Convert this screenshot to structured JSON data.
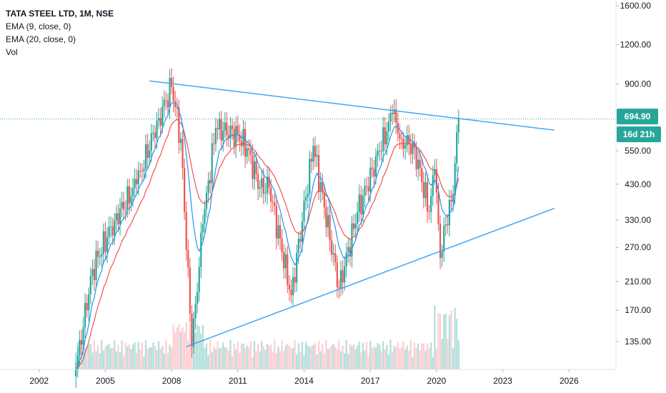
{
  "legend": {
    "title": "TATA STEEL LTD, 1M, NSE",
    "ema9": "EMA (9, close, 0)",
    "ema20": "EMA (20, close, 0)",
    "vol": "Vol"
  },
  "price_tag": {
    "price": "694.90",
    "countdown": "16d 21h"
  },
  "colors": {
    "up": "#26a69a",
    "down": "#ef5350",
    "ema9": "#2196f3",
    "ema20": "#ef5350",
    "trend": "#42a5f5",
    "price_line": "#26a69a",
    "tag_bg": "#26a69a",
    "vol_up": "#b2dfdb",
    "vol_down": "#ffcdd2"
  },
  "chart_data": {
    "type": "candlestick",
    "instrument": "TATA STEEL LTD",
    "interval": "1M",
    "exchange": "NSE",
    "y_scale": "log",
    "y_ticks": [
      "1600.00",
      "1200.00",
      "900.00",
      "694.90",
      "550.00",
      "430.00",
      "330.00",
      "270.00",
      "210.00",
      "170.00",
      "135.00"
    ],
    "x_ticks": [
      "2002",
      "2005",
      "2008",
      "2011",
      "2014",
      "2017",
      "2020",
      "2023",
      "2026"
    ],
    "key_points": [
      {
        "date": "2003-09",
        "close": 110
      },
      {
        "date": "2004-06",
        "close": 230
      },
      {
        "date": "2005-06",
        "close": 330
      },
      {
        "date": "2006-06",
        "close": 430
      },
      {
        "date": "2007-06",
        "close": 700
      },
      {
        "date": "2008-01",
        "close": 880
      },
      {
        "date": "2008-06",
        "close": 600
      },
      {
        "date": "2008-12",
        "close": 130
      },
      {
        "date": "2009-06",
        "close": 320
      },
      {
        "date": "2010-01",
        "close": 650
      },
      {
        "date": "2011-01",
        "close": 620
      },
      {
        "date": "2011-06",
        "close": 560
      },
      {
        "date": "2012-01",
        "close": 420
      },
      {
        "date": "2012-06",
        "close": 420
      },
      {
        "date": "2013-06",
        "close": 190
      },
      {
        "date": "2014-06",
        "close": 570
      },
      {
        "date": "2015-08",
        "close": 200
      },
      {
        "date": "2016-06",
        "close": 350
      },
      {
        "date": "2017-06",
        "close": 550
      },
      {
        "date": "2018-01",
        "close": 720
      },
      {
        "date": "2018-06",
        "close": 600
      },
      {
        "date": "2019-01",
        "close": 560
      },
      {
        "date": "2019-09",
        "close": 350
      },
      {
        "date": "2019-12",
        "close": 480
      },
      {
        "date": "2020-03",
        "close": 250
      },
      {
        "date": "2020-06",
        "close": 320
      },
      {
        "date": "2020-10",
        "close": 400
      },
      {
        "date": "2020-12",
        "close": 630
      },
      {
        "date": "2021-01",
        "close": 694.9
      }
    ],
    "trendlines": [
      {
        "name": "resistance",
        "from": {
          "date": "2007-01",
          "price": 920
        },
        "to": {
          "date": "2025-05",
          "price": 640
        }
      },
      {
        "name": "support",
        "from": {
          "date": "2008-09",
          "price": 130
        },
        "to": {
          "date": "2025-05",
          "price": 360
        }
      }
    ],
    "last_price": 694.9
  }
}
